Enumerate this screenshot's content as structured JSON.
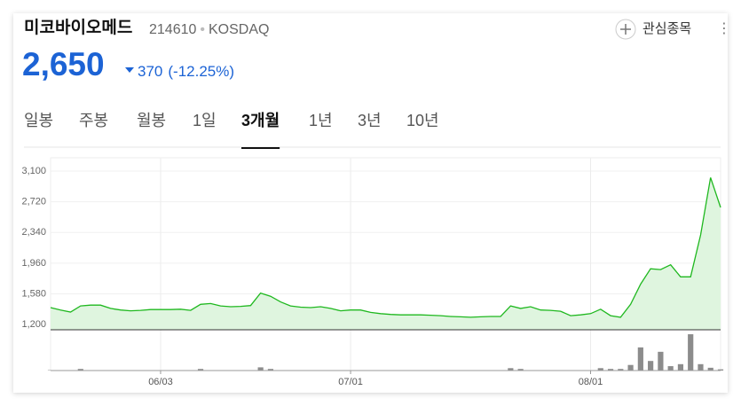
{
  "header": {
    "name": "미코바이오메드",
    "code": "214610",
    "market": "KOSDAQ",
    "price": "2,650",
    "change": "370",
    "change_pct": "(-12.25%)",
    "watch": "관심종목"
  },
  "tabs": {
    "items": [
      "일봉",
      "주봉",
      "월봉",
      "1일",
      "3개월",
      "1년",
      "3년",
      "10년"
    ],
    "selected": 4
  },
  "chart_data": {
    "type": "line",
    "color": "#1fb81f",
    "fill": "#dff5df",
    "categories": [
      null,
      null,
      null,
      null,
      null,
      null,
      null,
      null,
      null,
      null,
      null,
      "06/03",
      null,
      null,
      null,
      null,
      null,
      null,
      null,
      null,
      null,
      null,
      null,
      null,
      null,
      null,
      null,
      null,
      null,
      null,
      "07/01",
      null,
      null,
      null,
      null,
      null,
      null,
      null,
      null,
      null,
      null,
      null,
      null,
      null,
      null,
      null,
      null,
      null,
      null,
      null,
      null,
      null,
      null,
      null,
      "08/01",
      null,
      null,
      null,
      null,
      null,
      null,
      null,
      null,
      null,
      null,
      null,
      null,
      null
    ],
    "values": [
      1410,
      1380,
      1355,
      1430,
      1440,
      1440,
      1400,
      1380,
      1370,
      1375,
      1385,
      1385,
      1385,
      1390,
      1375,
      1450,
      1460,
      1430,
      1420,
      1425,
      1435,
      1590,
      1550,
      1480,
      1430,
      1415,
      1410,
      1420,
      1400,
      1370,
      1380,
      1380,
      1350,
      1335,
      1325,
      1320,
      1320,
      1320,
      1315,
      1310,
      1300,
      1295,
      1290,
      1295,
      1300,
      1300,
      1430,
      1400,
      1420,
      1380,
      1375,
      1365,
      1310,
      1320,
      1335,
      1390,
      1310,
      1290,
      1450,
      1700,
      1890,
      1880,
      1940,
      1790,
      1790,
      2310,
      3020,
      2650
    ],
    "ylim": [
      1135,
      3265
    ],
    "yticks": [
      {
        "value": 1200,
        "label": "1,200"
      },
      {
        "value": 1580,
        "label": "1,580"
      },
      {
        "value": 1960,
        "label": "1,960"
      },
      {
        "value": 2340,
        "label": "2,340"
      },
      {
        "value": 2720,
        "label": "2,720"
      },
      {
        "value": 3100,
        "label": "3,100"
      }
    ],
    "volume": {
      "color": "#8c8c8c",
      "ylim": [
        0,
        100
      ],
      "values": [
        1,
        1,
        1,
        4,
        1,
        1,
        1,
        1,
        1,
        1,
        1,
        1,
        1,
        1,
        1,
        4,
        1,
        1,
        1,
        1,
        1,
        8,
        4,
        1,
        1,
        1,
        1,
        1,
        1,
        1,
        1,
        1,
        1,
        1,
        1,
        1,
        1,
        1,
        1,
        1,
        1,
        1,
        1,
        1,
        1,
        1,
        6,
        4,
        1,
        1,
        1,
        1,
        1,
        1,
        1,
        6,
        4,
        4,
        14,
        58,
        24,
        47,
        11,
        16,
        91,
        16,
        7,
        3
      ]
    }
  }
}
